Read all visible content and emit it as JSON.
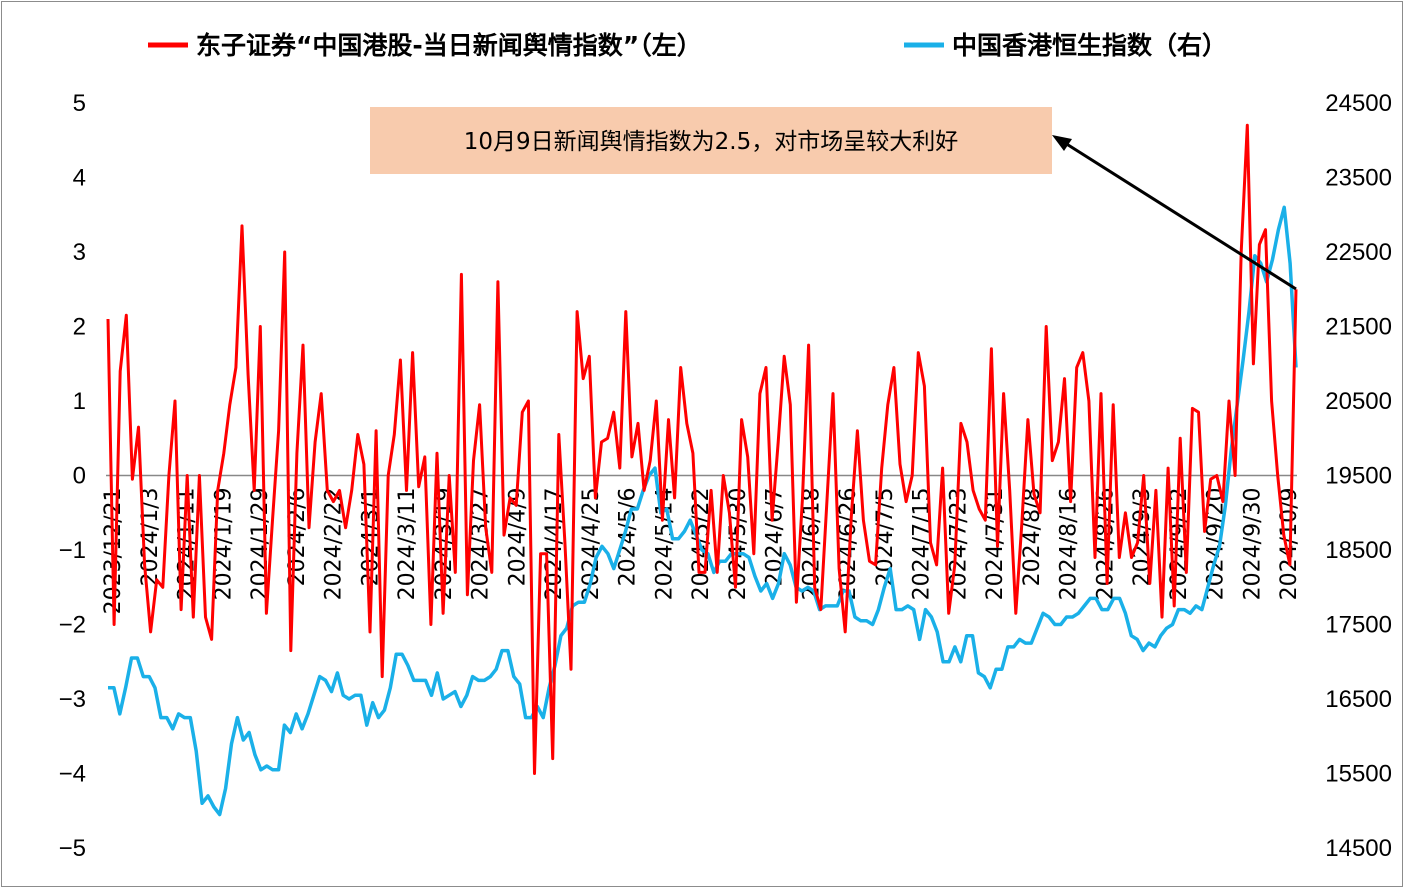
{
  "chart_data": {
    "type": "line",
    "title": "",
    "legend": {
      "placement": "top",
      "entries": [
        {
          "name": "东子证券“中国港股-当日新闻舆情指数”（左）",
          "color": "#ff0000"
        },
        {
          "name": "中国香港恒生指数（右）",
          "color": "#1ab0e8"
        }
      ]
    },
    "annotation": {
      "text": "10月9日新闻舆情指数为2.5，对市场呈较大利好",
      "box_color": "#f8cbad"
    },
    "left_axis": {
      "ticks": [
        "5",
        "4",
        "3",
        "2",
        "1",
        "0",
        "−1",
        "−2",
        "−3",
        "−4",
        "−5"
      ],
      "range": [
        -5,
        5
      ]
    },
    "right_axis": {
      "ticks": [
        "24500",
        "23500",
        "22500",
        "21500",
        "20500",
        "19500",
        "18500",
        "17500",
        "16500",
        "15500",
        "14500"
      ],
      "range": [
        14500,
        24500
      ]
    },
    "x_tick_labels": [
      "2023/12/21",
      "2024/1/3",
      "2024/1/11",
      "2024/1/19",
      "2024/1/29",
      "2024/2/6",
      "2024/2/22",
      "2024/3/1",
      "2024/3/11",
      "2024/3/19",
      "2024/3/27",
      "2024/4/9",
      "2024/4/17",
      "2024/4/25",
      "2024/5/6",
      "2024/5/14",
      "2024/5/22",
      "2024/5/30",
      "2024/6/7",
      "2024/6/18",
      "2024/6/26",
      "2024/7/5",
      "2024/7/15",
      "2024/7/23",
      "2024/7/31",
      "2024/8/8",
      "2024/8/16",
      "2024/8/26",
      "2024/9/3",
      "2024/9/12",
      "2024/9/20",
      "2024/9/30",
      "2024/10/9"
    ],
    "series": [
      {
        "name": "东子证券“中国港股-当日新闻舆情指数”（左）",
        "axis": "left",
        "color": "#ff0000",
        "values": [
          2.1,
          -2.0,
          1.4,
          2.15,
          -0.05,
          0.65,
          -1.2,
          -2.1,
          -1.4,
          -1.5,
          0.0,
          1.0,
          -1.8,
          0.0,
          -1.9,
          0.0,
          -1.9,
          -2.2,
          -0.2,
          0.3,
          0.95,
          1.45,
          3.35,
          1.35,
          -0.2,
          2.0,
          -1.85,
          -0.6,
          0.6,
          3.0,
          -2.35,
          0.3,
          1.75,
          -0.7,
          0.45,
          1.1,
          -0.2,
          -0.35,
          -0.2,
          -0.7,
          -0.2,
          0.55,
          0.15,
          -2.1,
          0.6,
          -2.7,
          0.0,
          0.55,
          1.55,
          -0.2,
          1.65,
          -0.15,
          0.25,
          -2.0,
          0.3,
          -1.85,
          0.0,
          -1.3,
          2.7,
          -1.6,
          0.2,
          0.95,
          -0.7,
          -1.3,
          2.6,
          -0.8,
          -0.3,
          -0.4,
          0.85,
          1.0,
          -4.0,
          -1.05,
          -1.05,
          -3.8,
          0.55,
          -0.9,
          -2.6,
          2.2,
          1.3,
          1.6,
          -0.3,
          0.45,
          0.5,
          0.85,
          0.1,
          2.2,
          0.25,
          0.7,
          -0.2,
          0.2,
          1.0,
          -0.6,
          0.75,
          -0.3,
          1.45,
          0.7,
          0.3,
          -1.3,
          -1.3,
          -0.2,
          -1.3,
          0.0,
          -0.5,
          -1.5,
          0.75,
          0.25,
          -1.05,
          1.1,
          1.45,
          -0.6,
          0.45,
          1.6,
          0.95,
          -1.7,
          -0.3,
          1.75,
          -1.5,
          -1.8,
          -0.35,
          1.1,
          -1.25,
          -2.1,
          -0.55,
          0.6,
          -0.6,
          -1.15,
          -1.2,
          0.1,
          0.95,
          1.45,
          0.15,
          -0.35,
          0.0,
          1.65,
          1.2,
          -0.9,
          -1.2,
          0.1,
          -1.85,
          -1.2,
          0.7,
          0.45,
          -0.2,
          -0.45,
          -0.6,
          1.7,
          -0.95,
          1.1,
          -0.2,
          -1.85,
          -0.65,
          0.75,
          -0.25,
          -0.5,
          2.0,
          0.2,
          0.45,
          1.3,
          -0.35,
          1.45,
          1.65,
          1.0,
          -1.1,
          1.1,
          -1.45,
          0.95,
          -1.1,
          -0.5,
          -1.1,
          -0.9,
          0.0,
          -1.45,
          -0.2,
          -1.9,
          0.1,
          -1.75,
          0.5,
          -1.3,
          0.9,
          0.85,
          -0.75,
          -0.05,
          0.0,
          -0.35,
          1.0,
          0.0,
          3.0,
          4.7,
          1.5,
          3.1,
          3.3,
          1.0,
          0.0,
          -0.8,
          -1.2,
          2.5
        ]
      },
      {
        "name": "中国香港恒生指数（右）",
        "axis": "right",
        "color": "#1ab0e8",
        "values": [
          16650,
          16650,
          16300,
          16650,
          17050,
          17050,
          16800,
          16800,
          16650,
          16250,
          16250,
          16100,
          16300,
          16250,
          16250,
          15800,
          15100,
          15200,
          15050,
          14950,
          15300,
          15900,
          16250,
          15950,
          16050,
          15750,
          15550,
          15600,
          15550,
          15550,
          16150,
          16050,
          16300,
          16100,
          16300,
          16550,
          16800,
          16750,
          16600,
          16850,
          16550,
          16500,
          16550,
          16550,
          16150,
          16450,
          16250,
          16350,
          16650,
          17100,
          17100,
          16950,
          16750,
          16750,
          16750,
          16550,
          16850,
          16500,
          16550,
          16600,
          16400,
          16550,
          16800,
          16750,
          16750,
          16800,
          16900,
          17150,
          17150,
          16800,
          16700,
          16250,
          16250,
          16400,
          16250,
          16650,
          16950,
          17350,
          17450,
          17750,
          17800,
          17800,
          18050,
          18400,
          18550,
          18450,
          18250,
          18500,
          18750,
          19050,
          19050,
          19300,
          19500,
          19600,
          19000,
          19050,
          18650,
          18650,
          18750,
          18900,
          18700,
          18500,
          18450,
          18200,
          18350,
          18350,
          18450,
          18450,
          18450,
          18400,
          18150,
          17950,
          18050,
          17850,
          18050,
          18450,
          18300,
          18000,
          17950,
          18000,
          17950,
          17700,
          17750,
          17750,
          17750,
          17950,
          17950,
          17600,
          17550,
          17550,
          17500,
          17700,
          18000,
          18250,
          17700,
          17700,
          17750,
          17700,
          17300,
          17700,
          17600,
          17400,
          17000,
          17000,
          17200,
          17000,
          17350,
          17350,
          16850,
          16800,
          16650,
          16900,
          16900,
          17200,
          17200,
          17300,
          17250,
          17250,
          17450,
          17650,
          17600,
          17500,
          17500,
          17600,
          17600,
          17650,
          17750,
          17850,
          17850,
          17700,
          17700,
          17850,
          17850,
          17650,
          17350,
          17300,
          17150,
          17250,
          17200,
          17350,
          17450,
          17500,
          17700,
          17700,
          17650,
          17750,
          17700,
          18000,
          18300,
          18550,
          19100,
          19850,
          20450,
          21050,
          21700,
          22450,
          22350,
          22100,
          22400,
          22800,
          23100,
          22350,
          20950
        ]
      }
    ]
  }
}
